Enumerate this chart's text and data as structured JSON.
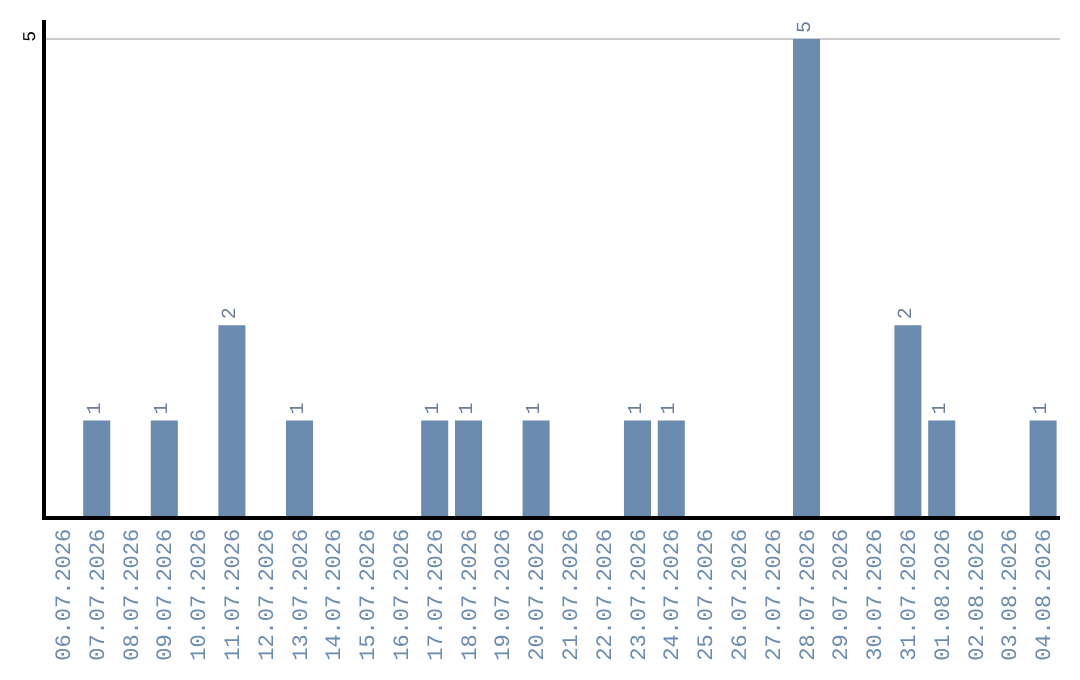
{
  "chart_data": {
    "type": "bar",
    "categories": [
      "06.07.2026",
      "07.07.2026",
      "08.07.2026",
      "09.07.2026",
      "10.07.2026",
      "11.07.2026",
      "12.07.2026",
      "13.07.2026",
      "14.07.2026",
      "15.07.2026",
      "16.07.2026",
      "17.07.2026",
      "18.07.2026",
      "19.07.2026",
      "20.07.2026",
      "21.07.2026",
      "22.07.2026",
      "23.07.2026",
      "24.07.2026",
      "25.07.2026",
      "26.07.2026",
      "27.07.2026",
      "28.07.2026",
      "29.07.2026",
      "30.07.2026",
      "31.07.2026",
      "01.08.2026",
      "02.08.2026",
      "03.08.2026",
      "04.08.2026"
    ],
    "values": [
      0,
      1,
      0,
      1,
      0,
      2,
      0,
      1,
      0,
      0,
      0,
      1,
      1,
      0,
      1,
      0,
      0,
      1,
      1,
      0,
      0,
      0,
      5,
      0,
      0,
      2,
      1,
      0,
      0,
      1
    ],
    "value_labels": [
      null,
      "1",
      null,
      "1",
      null,
      "2",
      null,
      "1",
      null,
      null,
      null,
      "1",
      "1",
      null,
      "1",
      null,
      null,
      "1",
      "1",
      null,
      null,
      null,
      "5",
      null,
      null,
      "2",
      "1",
      null,
      null,
      "1"
    ],
    "color": "#6b8cae",
    "ylim": [
      0,
      5.2
    ],
    "yticks": [
      5
    ],
    "grid": "y",
    "legend": false
  }
}
